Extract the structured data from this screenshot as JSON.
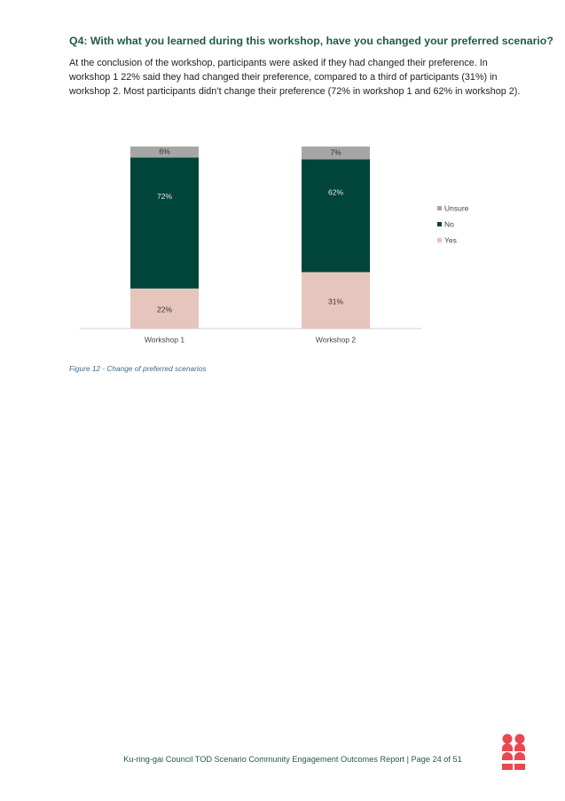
{
  "heading": "Q4: With what you learned during this workshop, have you changed your preferred scenario?",
  "paragraph": "At the conclusion of the workshop, participants were asked if they had changed their preference. In workshop 1 22% said they had changed their preference, compared to a third of participants (31%) in workshop 2. Most participants didn’t change their preference (72% in workshop 1 and 62% in workshop 2).",
  "chart_data": {
    "type": "stacked-bar",
    "categories": [
      "Workshop 1",
      "Workshop 2"
    ],
    "series": [
      {
        "name": "Yes",
        "color": "#e6c5bc",
        "values": [
          22,
          31
        ],
        "value_labels": [
          "22%",
          "31%"
        ]
      },
      {
        "name": "No",
        "color": "#00443a",
        "values": [
          72,
          62
        ],
        "value_labels": [
          "72%",
          "62%"
        ]
      },
      {
        "name": "Unsure",
        "color": "#a6a6a6",
        "values": [
          6,
          7
        ],
        "value_labels": [
          "6%",
          "7%"
        ]
      }
    ]
  },
  "caption": "Figure 12 - Change of preferred scenarios",
  "footer": "Ku-ring-gai Council TOD Scenario Community Engagement Outcomes Report | Page 24 of 51"
}
